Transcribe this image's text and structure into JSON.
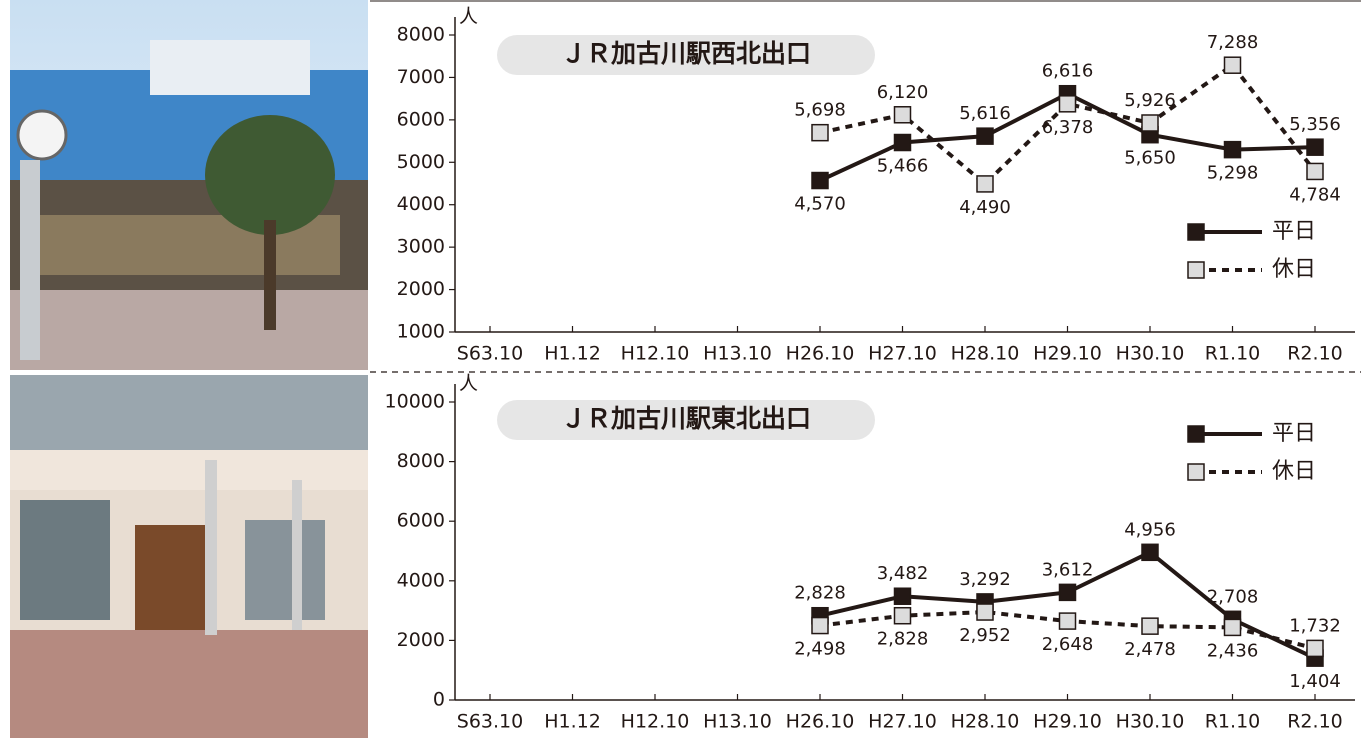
{
  "chart_data": [
    {
      "type": "line",
      "title": "ＪＲ加古川駅西北出口",
      "y_unit": "人",
      "categories": [
        "S63.10",
        "H1.12",
        "H12.10",
        "H13.10",
        "H26.10",
        "H27.10",
        "H28.10",
        "H29.10",
        "H30.10",
        "R1.10",
        "R2.10"
      ],
      "ylim": [
        1000,
        8000
      ],
      "yticks": [
        1000,
        2000,
        3000,
        4000,
        5000,
        6000,
        7000,
        8000
      ],
      "legend": "lower right",
      "series": [
        {
          "name": "平日",
          "color": "#231815",
          "style": "solid",
          "marker_fill": "#231815",
          "values": [
            null,
            null,
            null,
            null,
            4570,
            5466,
            5616,
            6616,
            5650,
            5298,
            5356
          ],
          "value_labels": [
            null,
            null,
            null,
            null,
            "4,570",
            "5,466",
            "5,616",
            "6,616",
            "5,650",
            "5,298",
            "5,356"
          ]
        },
        {
          "name": "休日",
          "color": "#231815",
          "style": "dotted",
          "marker_fill": "#dcdcdc",
          "values": [
            null,
            null,
            null,
            null,
            5698,
            6120,
            4490,
            6378,
            5926,
            7288,
            4784
          ],
          "value_labels": [
            null,
            null,
            null,
            null,
            "5,698",
            "6,120",
            "4,490",
            "6,378",
            "5,926",
            "7,288",
            "4,784"
          ]
        }
      ]
    },
    {
      "type": "line",
      "title": "ＪＲ加古川駅東北出口",
      "y_unit": "人",
      "categories": [
        "S63.10",
        "H1.12",
        "H12.10",
        "H13.10",
        "H26.10",
        "H27.10",
        "H28.10",
        "H29.10",
        "H30.10",
        "R1.10",
        "R2.10"
      ],
      "ylim": [
        0,
        10000
      ],
      "yticks": [
        0,
        2000,
        4000,
        6000,
        8000,
        10000
      ],
      "legend": "upper right",
      "series": [
        {
          "name": "平日",
          "color": "#231815",
          "style": "solid",
          "marker_fill": "#231815",
          "values": [
            null,
            null,
            null,
            null,
            2828,
            3482,
            3292,
            3612,
            4956,
            2708,
            1404
          ],
          "value_labels": [
            null,
            null,
            null,
            null,
            "2,828",
            "3,482",
            "3,292",
            "3,612",
            "4,956",
            "2,708",
            "1,404"
          ]
        },
        {
          "name": "休日",
          "color": "#231815",
          "style": "dotted",
          "marker_fill": "#dcdcdc",
          "values": [
            null,
            null,
            null,
            null,
            2498,
            2828,
            2952,
            2648,
            2478,
            2436,
            1732
          ],
          "value_labels": [
            null,
            null,
            null,
            null,
            "2,498",
            "2,828",
            "2,952",
            "2,648",
            "2,478",
            "2,436",
            "1,732"
          ]
        }
      ]
    }
  ]
}
